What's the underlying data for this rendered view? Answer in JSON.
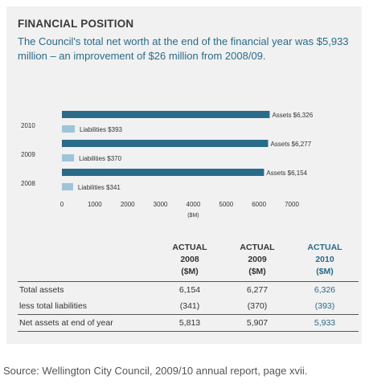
{
  "panel": {
    "heading": "FINANCIAL POSITION",
    "lead": "The Council's total net worth at the end of the financial year was $5,933 million – an improvement of $26 million from 2008/09."
  },
  "chart_data": {
    "type": "bar",
    "orientation": "horizontal",
    "categories": [
      "2010",
      "2009",
      "2008"
    ],
    "series": [
      {
        "name": "Assets",
        "values": [
          6326,
          6277,
          6154
        ],
        "labels": [
          "Assets $6,326",
          "Assets $6,277",
          "Assets $6,154"
        ],
        "color": "#2a6b8a"
      },
      {
        "name": "Liabilities",
        "values": [
          393,
          370,
          341
        ],
        "labels": [
          "Liabilities $393",
          "Liabilities $370",
          "Liabilities $341"
        ],
        "color": "#9ec4d8"
      }
    ],
    "xticks": [
      0,
      1000,
      2000,
      3000,
      4000,
      5000,
      6000,
      7000
    ],
    "xlim": [
      0,
      7000
    ],
    "xlabel": "($M)",
    "grid": false
  },
  "table": {
    "columns": [
      {
        "line1": "ACTUAL",
        "line2": "2008",
        "line3": "($M)"
      },
      {
        "line1": "ACTUAL",
        "line2": "2009",
        "line3": "($M)"
      },
      {
        "line1": "ACTUAL",
        "line2": "2010",
        "line3": "($M)"
      }
    ],
    "rows": [
      {
        "label": "Total assets",
        "values": [
          "6,154",
          "6,277",
          "6,326"
        ]
      },
      {
        "label": "less total liabilities",
        "values": [
          "(341)",
          "(370)",
          "(393)"
        ]
      },
      {
        "label": "Net assets at end of year",
        "values": [
          "5,813",
          "5,907",
          "5,933"
        ]
      }
    ]
  },
  "colors": {
    "accent": "#2a6b8a",
    "light": "#9ec4d8",
    "panel": "#f1f1f1"
  },
  "source": "Source: Wellington City Council, 2009/10 annual report, page xvii."
}
